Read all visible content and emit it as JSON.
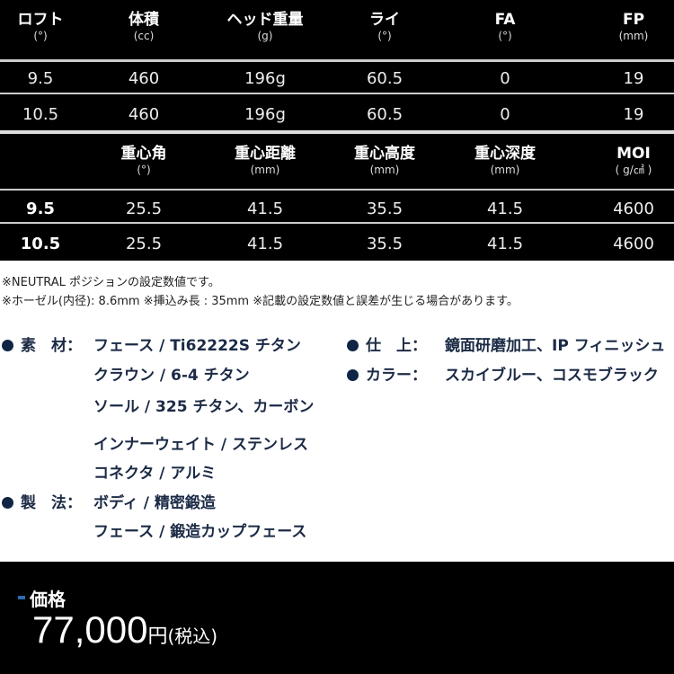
{
  "table1": {
    "headers": [
      {
        "title": "ロフト",
        "unit": "(°)"
      },
      {
        "title": "体積",
        "unit": "(cc)"
      },
      {
        "title": "ヘッド重量",
        "unit": "(g)"
      },
      {
        "title": "ライ",
        "unit": "(°)"
      },
      {
        "title": "FA",
        "unit": "(°)"
      },
      {
        "title": "FP",
        "unit": "(mm)"
      }
    ],
    "rows": [
      [
        "9.5",
        "460",
        "196g",
        "60.5",
        "0",
        "19"
      ],
      [
        "10.5",
        "460",
        "196g",
        "60.5",
        "0",
        "19"
      ]
    ]
  },
  "table2": {
    "headers": [
      {
        "title": "",
        "unit": ""
      },
      {
        "title": "重心角",
        "unit": "(°)"
      },
      {
        "title": "重心距離",
        "unit": "(mm)"
      },
      {
        "title": "重心高度",
        "unit": "(mm)"
      },
      {
        "title": "重心深度",
        "unit": "(mm)"
      },
      {
        "title": "MOI",
        "unit": "( g/㎠ )"
      }
    ],
    "rows": [
      [
        "9.5",
        "25.5",
        "41.5",
        "35.5",
        "41.5",
        "4600"
      ],
      [
        "10.5",
        "25.5",
        "41.5",
        "35.5",
        "41.5",
        "4600"
      ]
    ]
  },
  "notes": [
    "※NEUTRAL ポジションの設定数値です。",
    "※ホーゼル(内径): 8.6mm  ※挿込み長 : 35mm  ※記載の設定数値と誤差が生じる場合があります。"
  ],
  "specs": {
    "material": {
      "label": "素　材：",
      "lines": [
        "フェース / Ti62222S チタン",
        "クラウン / 6-4 チタン",
        "ソール / 325 チタン、カーボン",
        "インナーウェイト / ステンレス",
        "コネクタ / アルミ"
      ]
    },
    "method": {
      "label": "製　法：",
      "lines": [
        "ボディ / 精密鍛造",
        "フェース / 鍛造カップフェース"
      ]
    },
    "finish": {
      "label": "仕　上：",
      "value": "鏡面研磨加工、IP フィニッシュ"
    },
    "color": {
      "label": "カラー：",
      "value": "スカイブルー、コスモブラック"
    }
  },
  "price": {
    "label": "価格",
    "amount": "77,000",
    "currency": "円",
    "tax": "(税込)",
    "accent": "#2a6cb0"
  }
}
